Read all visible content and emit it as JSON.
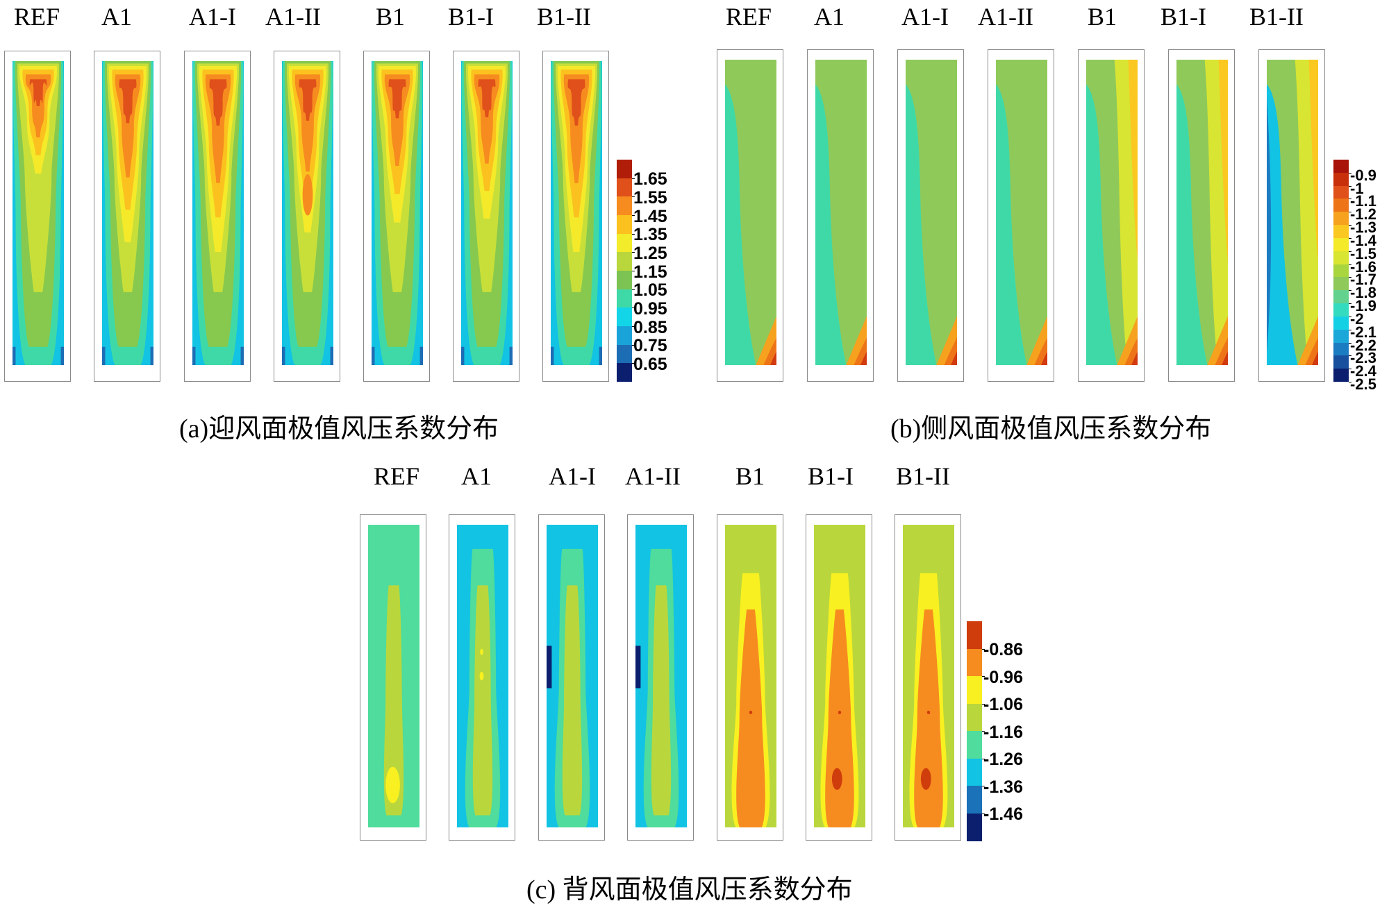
{
  "figure": {
    "panels": [
      {
        "id": "a",
        "caption": "(a)迎风面极值风压系数分布",
        "labels": [
          "REF",
          "A1",
          "A1-I",
          "A1-II",
          "B1",
          "B1-I",
          "B1-II"
        ],
        "colorbar": {
          "colors": [
            "#b01e0a",
            "#e0501a",
            "#f68c1f",
            "#fbc21f",
            "#f2ec2a",
            "#b9d73c",
            "#7cc354",
            "#3fd9a8",
            "#12d6e8",
            "#1aa3d8",
            "#1d6db5",
            "#0b1f6e"
          ],
          "ticks": [
            "1.65",
            "1.55",
            "1.45",
            "1.35",
            "1.25",
            "1.15",
            "1.05",
            "0.95",
            "0.85",
            "0.75",
            "0.65"
          ]
        }
      },
      {
        "id": "b",
        "caption": "(b)侧风面极值风压系数分布",
        "labels": [
          "REF",
          "A1",
          "A1-I",
          "A1-II",
          "B1",
          "B1-I",
          "B1-II"
        ],
        "colorbar": {
          "colors": [
            "#a8140a",
            "#c8300c",
            "#e0501a",
            "#ee7418",
            "#f6a21e",
            "#fbc721",
            "#f4ea2a",
            "#d8e532",
            "#a9d63e",
            "#8fc95a",
            "#62d28e",
            "#35dbbf",
            "#14d0e4",
            "#1ba8d9",
            "#1c7cc1",
            "#18509e",
            "#0b1f6e"
          ],
          "ticks": [
            "-0.9",
            "-1",
            "-1.1",
            "-1.2",
            "-1.3",
            "-1.4",
            "-1.5",
            "-1.6",
            "-1.7",
            "-1.8",
            "-1.9",
            "-2",
            "-2.1",
            "-2.2",
            "-2.3",
            "-2.4",
            "-2.5"
          ]
        }
      },
      {
        "id": "c",
        "caption": "(c)  背风面极值风压系数分布",
        "labels": [
          "REF",
          "A1",
          "A1-I",
          "A1-II",
          "B1",
          "B1-I",
          "B1-II"
        ],
        "colorbar": {
          "colors": [
            "#cf3d0c",
            "#f68c1f",
            "#f8f020",
            "#b9d73c",
            "#4fdc9c",
            "#12c3e3",
            "#1b72b8",
            "#0b1f6e"
          ],
          "ticks": [
            "-0.86",
            "-0.96",
            "-1.06",
            "-1.16",
            "-1.26",
            "-1.36",
            "-1.46"
          ]
        }
      }
    ]
  },
  "palettes": {
    "windward": [
      "#12c3e3",
      "#3fd9a8",
      "#86c94e",
      "#c8df3a",
      "#f4ea2a",
      "#fbc21f",
      "#f68c1f",
      "#e0501a"
    ],
    "side": [
      "#12c3e3",
      "#3fd9a8",
      "#8fc95a",
      "#d8e532",
      "#fbc721",
      "#f6a21e",
      "#ee7418",
      "#d23a10"
    ],
    "leeward": [
      "#12c3e3",
      "#4fdc9c",
      "#b9d73c",
      "#f8f020",
      "#f68c1f",
      "#cf3d0c"
    ]
  }
}
